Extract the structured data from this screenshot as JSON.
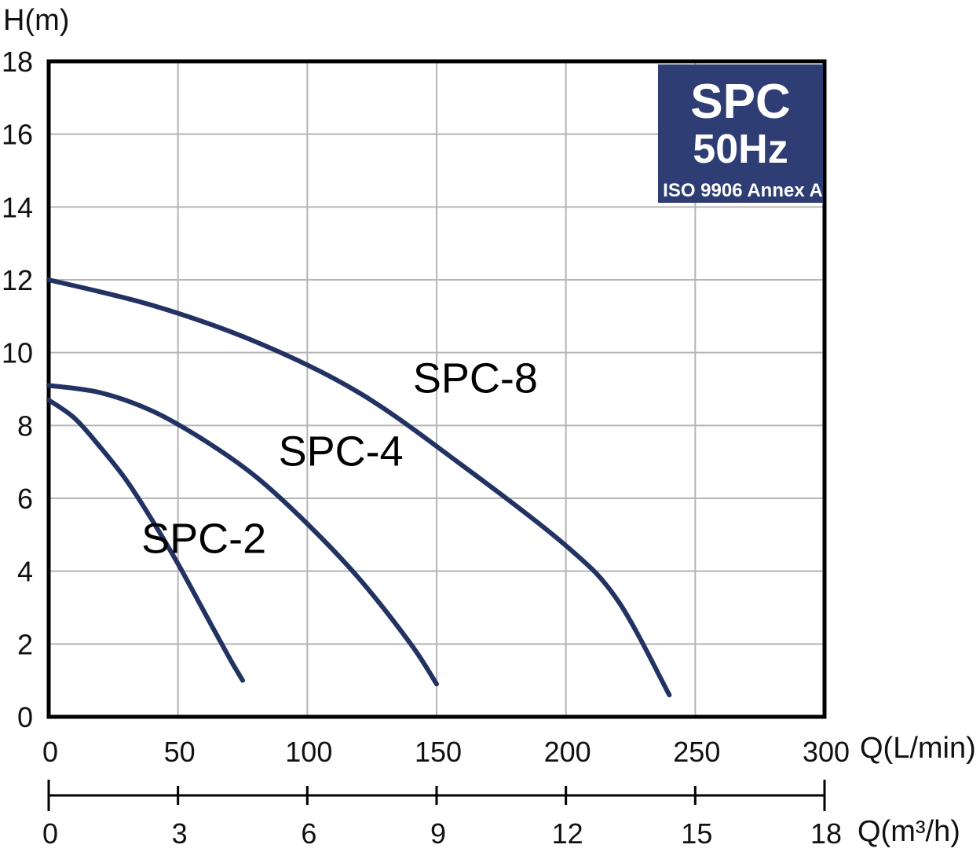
{
  "chart_data": {
    "type": "line",
    "title": "",
    "ylabel": "H(m)",
    "xlabel": "Q(L/min)",
    "xlabel_secondary": "Q(m³/h)",
    "xlim": [
      0,
      300
    ],
    "ylim": [
      0,
      18
    ],
    "grid": true,
    "x_ticks": [
      "0",
      "50",
      "100",
      "150",
      "200",
      "250",
      "300"
    ],
    "x_ticks_secondary": [
      "0",
      "3",
      "6",
      "9",
      "12",
      "15",
      "18"
    ],
    "y_ticks": [
      "0",
      "2",
      "4",
      "6",
      "8",
      "10",
      "12",
      "14",
      "16",
      "18"
    ],
    "series": [
      {
        "name": "SPC-2",
        "points": [
          [
            0,
            8.7
          ],
          [
            10,
            8.2
          ],
          [
            20,
            7.4
          ],
          [
            30,
            6.5
          ],
          [
            40,
            5.4
          ],
          [
            50,
            4.2
          ],
          [
            60,
            2.9
          ],
          [
            70,
            1.6
          ],
          [
            75,
            1.0
          ]
        ]
      },
      {
        "name": "SPC-4",
        "points": [
          [
            0,
            9.1
          ],
          [
            20,
            8.9
          ],
          [
            40,
            8.4
          ],
          [
            60,
            7.6
          ],
          [
            80,
            6.6
          ],
          [
            100,
            5.3
          ],
          [
            120,
            3.8
          ],
          [
            140,
            2.0
          ],
          [
            150,
            0.9
          ]
        ]
      },
      {
        "name": "SPC-8",
        "points": [
          [
            0,
            12.0
          ],
          [
            40,
            11.3
          ],
          [
            80,
            10.3
          ],
          [
            120,
            8.9
          ],
          [
            160,
            6.9
          ],
          [
            200,
            4.7
          ],
          [
            220,
            3.2
          ],
          [
            240,
            0.6
          ]
        ]
      }
    ],
    "annotations": {
      "badge_line1": "SPC",
      "badge_line2": "50Hz",
      "badge_line3": "ISO 9906 Annex A"
    },
    "colors": {
      "curve": "#223262",
      "badge_bg": "#2e3d73",
      "grid": "#b5b5b5",
      "frame": "#000000"
    }
  }
}
